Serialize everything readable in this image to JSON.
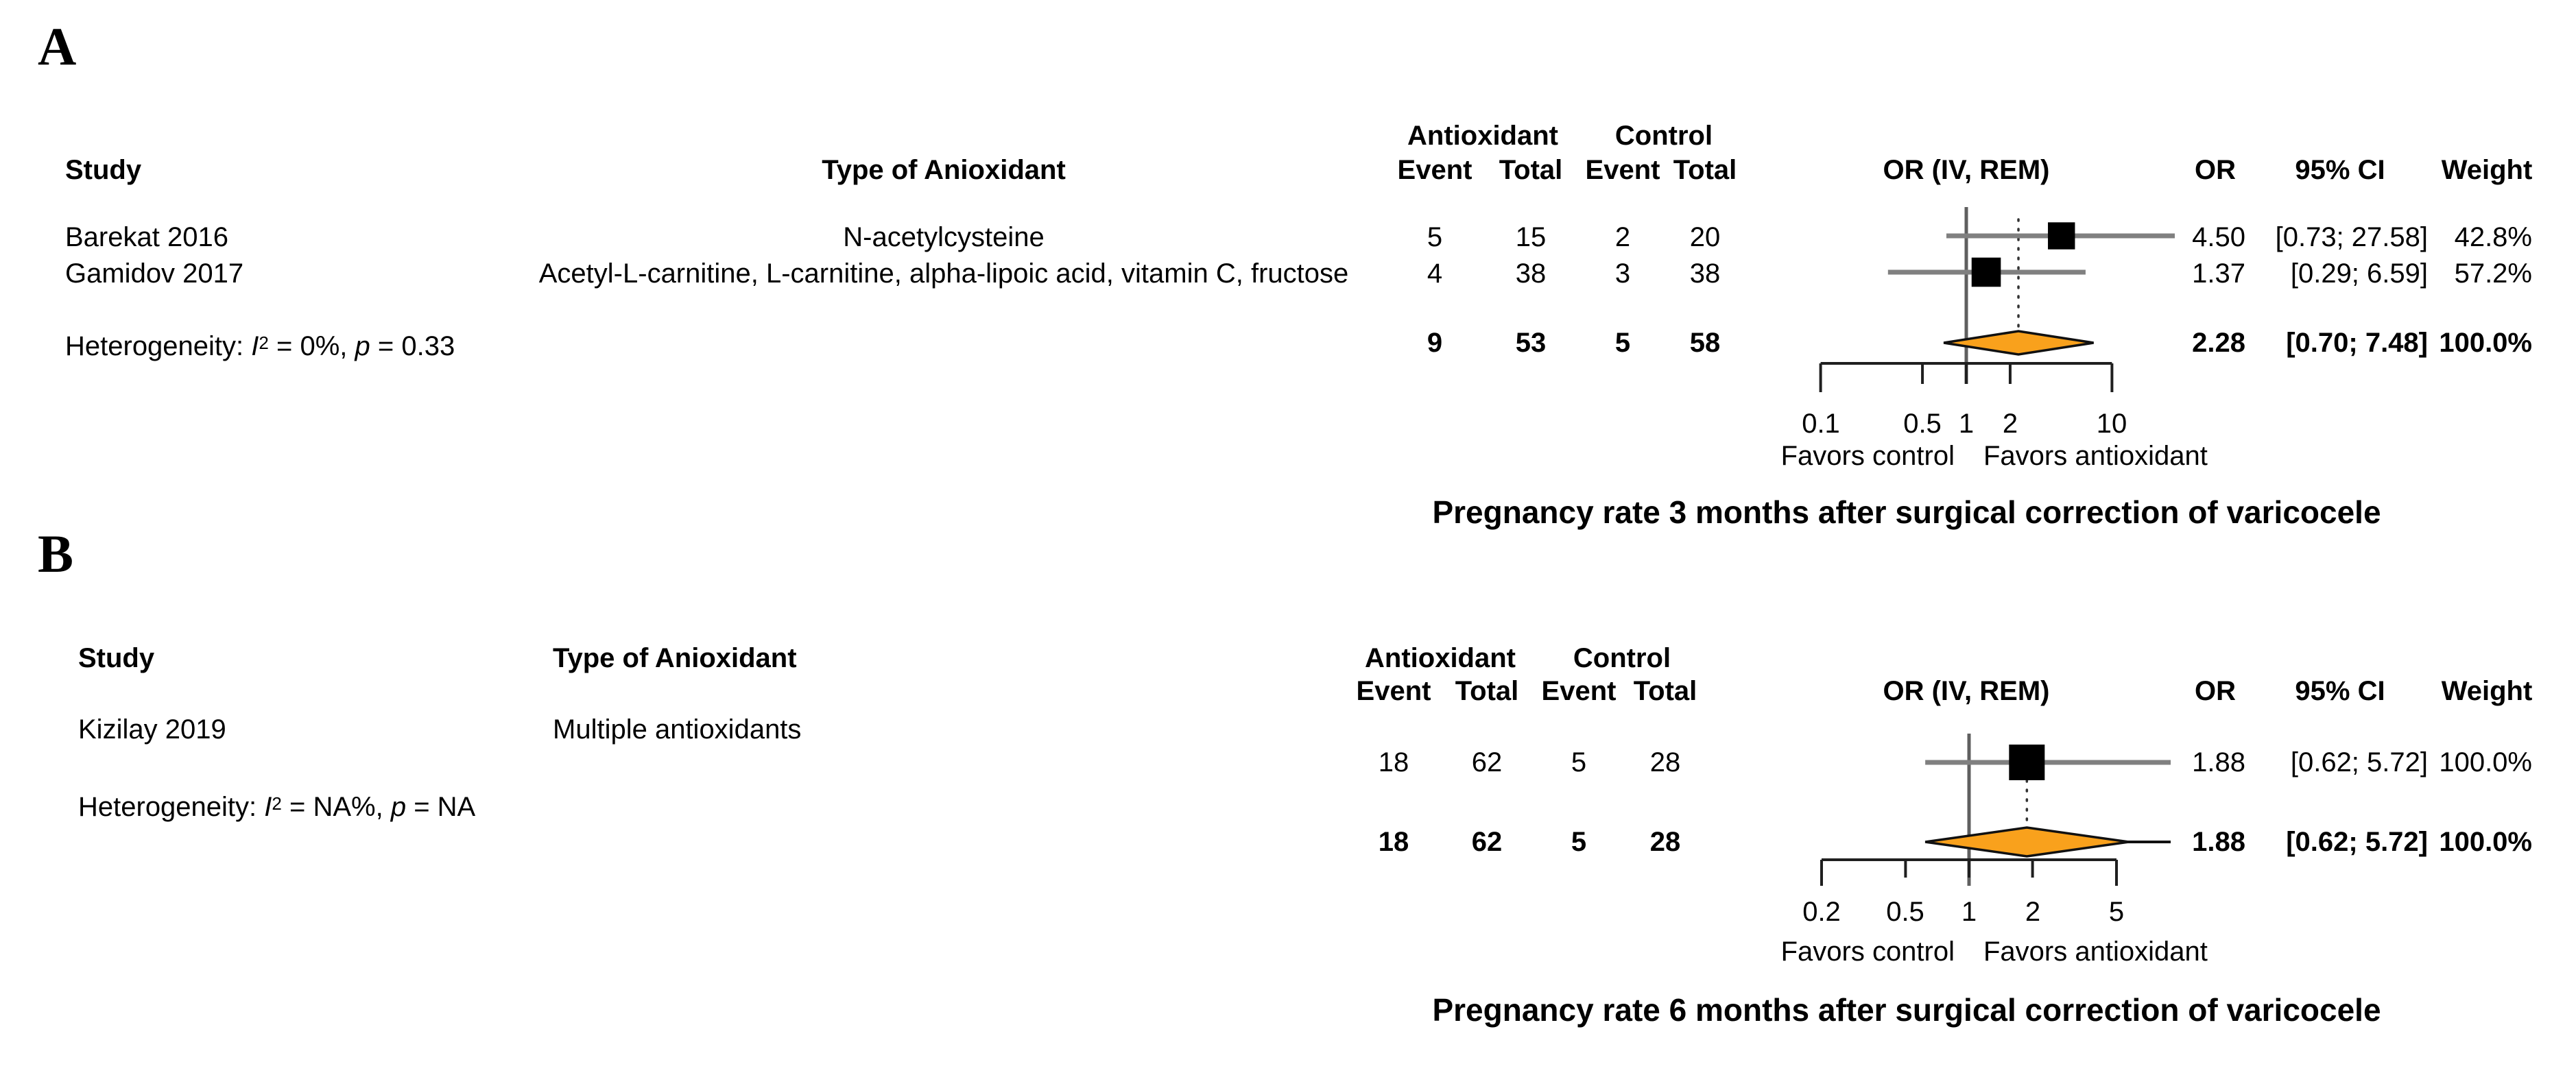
{
  "colors": {
    "diamond": "#F9A11C",
    "ci_line": "#808080",
    "square": "#000000",
    "text": "#000000",
    "background": "#FFFFFF"
  },
  "chart_data": [
    {
      "type": "forest",
      "panel": "A",
      "title": "Pregnancy rate 3 months after surgical correction of varicocele",
      "headers": {
        "study": "Study",
        "antioxidant_type": "Type of Anioxidant",
        "group_antioxidant": "Antioxidant",
        "group_control": "Control",
        "event": "Event",
        "total": "Total",
        "event2": "Event",
        "total2": "Total",
        "plot": "OR (IV, REM)",
        "or": "OR",
        "ci": "95% CI",
        "weight": "Weight"
      },
      "axis": {
        "scale": "log",
        "ticks": [
          0.1,
          0.5,
          1,
          2,
          10
        ],
        "tick_labels": [
          "0.1",
          "0.5",
          "1",
          "2",
          "10"
        ],
        "favors_left": "Favors control",
        "favors_right": "Favors antioxidant"
      },
      "studies": [
        {
          "study": "Barekat 2016",
          "antioxidant_type": "N-acetylcysteine",
          "ant_event": "5",
          "ant_total": "15",
          "ctl_event": "2",
          "ctl_total": "20",
          "or": 4.5,
          "ci_low": 0.73,
          "ci_high": 27.58,
          "weight": 42.8,
          "or_text": "4.50",
          "ci_text": "[0.73; 27.58]",
          "weight_text": "42.8%"
        },
        {
          "study": "Gamidov 2017",
          "antioxidant_type": "Acetyl-L-carnitine, L-carnitine, alpha-lipoic acid, vitamin C, fructose",
          "ant_event": "4",
          "ant_total": "38",
          "ctl_event": "3",
          "ctl_total": "38",
          "or": 1.37,
          "ci_low": 0.29,
          "ci_high": 6.59,
          "weight": 57.2,
          "or_text": "1.37",
          "ci_text": "[0.29; 6.59]",
          "weight_text": "57.2%"
        }
      ],
      "heterogeneity": {
        "prefix": "Heterogeneity: ",
        "i": "I",
        "sup": "2",
        "mid": " = 0%, ",
        "p": "p",
        "tail": " = 0.33"
      },
      "pooled": {
        "ant_event": "9",
        "ant_total": "53",
        "ctl_event": "5",
        "ctl_total": "58",
        "or": 2.28,
        "ci_low": 0.7,
        "ci_high": 7.48,
        "weight": 100.0,
        "or_text": "2.28",
        "ci_text": "[0.70; 7.48]",
        "weight_text": "100.0%"
      }
    },
    {
      "type": "forest",
      "panel": "B",
      "title": "Pregnancy rate 6 months after surgical correction of varicocele",
      "headers": {
        "study": "Study",
        "antioxidant_type": "Type of Anioxidant",
        "group_antioxidant": "Antioxidant",
        "group_control": "Control",
        "event": "Event",
        "total": "Total",
        "event2": "Event",
        "total2": "Total",
        "plot": "OR (IV, REM)",
        "or": "OR",
        "ci": "95% CI",
        "weight": "Weight"
      },
      "axis": {
        "scale": "log",
        "ticks": [
          0.2,
          0.5,
          1,
          2,
          5
        ],
        "tick_labels": [
          "0.2",
          "0.5",
          "1",
          "2",
          "5"
        ],
        "favors_left": "Favors control",
        "favors_right": "Favors antioxidant"
      },
      "studies": [
        {
          "study": "Kizilay 2019",
          "antioxidant_type": "Multiple antioxidants",
          "ant_event": "18",
          "ant_total": "62",
          "ctl_event": "5",
          "ctl_total": "28",
          "or": 1.88,
          "ci_low": 0.62,
          "ci_high": 5.72,
          "weight": 100.0,
          "or_text": "1.88",
          "ci_text": "[0.62; 5.72]",
          "weight_text": "100.0%"
        }
      ],
      "heterogeneity": {
        "prefix": "Heterogeneity: ",
        "i": "I",
        "sup": "2",
        "mid": " = NA%, ",
        "p": "p",
        "tail": " = NA"
      },
      "pooled": {
        "ant_event": "18",
        "ant_total": "62",
        "ctl_event": "5",
        "ctl_total": "28",
        "or": 1.88,
        "ci_low": 0.62,
        "ci_high": 5.72,
        "weight": 100.0,
        "or_text": "1.88",
        "ci_text": "[0.62; 5.72]",
        "weight_text": "100.0%"
      }
    }
  ]
}
